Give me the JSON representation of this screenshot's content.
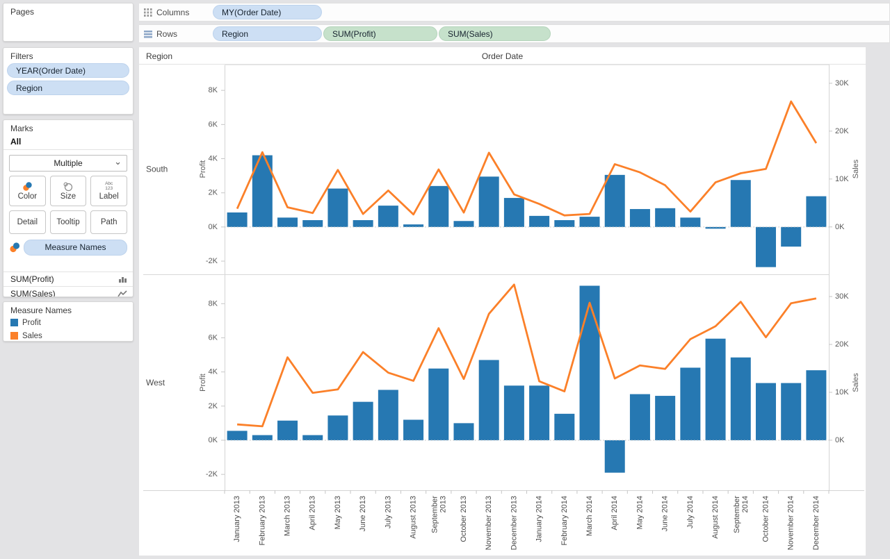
{
  "shelves": {
    "columns": {
      "label": "Columns",
      "pills": [
        {
          "text": "MY(Order Date)",
          "kind": "dimension"
        }
      ]
    },
    "rows": {
      "label": "Rows",
      "pills": [
        {
          "text": "Region",
          "kind": "dimension"
        },
        {
          "text": "SUM(Profit)",
          "kind": "measure"
        },
        {
          "text": "SUM(Sales)",
          "kind": "measure"
        }
      ]
    }
  },
  "sidebar": {
    "pages": {
      "title": "Pages"
    },
    "filters": {
      "title": "Filters",
      "pills": [
        "YEAR(Order Date)",
        "Region"
      ]
    },
    "marks": {
      "title": "Marks",
      "scope": "All",
      "mark_type": "Multiple",
      "buttons_row1": [
        "Color",
        "Size",
        "Label"
      ],
      "buttons_row2": [
        "Detail",
        "Tooltip",
        "Path"
      ],
      "label_icon_text": {
        "line1": "Abc",
        "line2": "123"
      },
      "encoding_pill": "Measure Names"
    },
    "measure_cards": [
      {
        "label": "SUM(Profit)",
        "icon": "bar-chart-icon"
      },
      {
        "label": "SUM(Sales)",
        "icon": "line-chart-icon"
      }
    ],
    "legend": {
      "title": "Measure Names",
      "items": [
        {
          "label": "Profit",
          "color": "#2678b2"
        },
        {
          "label": "Sales",
          "color": "#fb8029"
        }
      ]
    }
  },
  "chart_data": {
    "type": "bar+line dual-axis small multiples (2 region rows)",
    "column_header": "Order Date",
    "row_header": "Region",
    "categories": [
      "January 2013",
      "February 2013",
      "March 2013",
      "April 2013",
      "May 2013",
      "June 2013",
      "July 2013",
      "August 2013",
      "September 2013",
      "October 2013",
      "November 2013",
      "December 2013",
      "January 2014",
      "February 2014",
      "March 2014",
      "April 2014",
      "May 2014",
      "June 2014",
      "July 2014",
      "August 2014",
      "September 2014",
      "October 2014",
      "November 2014",
      "December 2014"
    ],
    "panels": [
      {
        "region": "South",
        "profit_k": [
          0.85,
          4.2,
          0.55,
          0.4,
          2.25,
          0.4,
          1.25,
          0.15,
          2.4,
          0.35,
          2.95,
          1.7,
          0.65,
          0.4,
          0.6,
          3.05,
          1.05,
          1.1,
          0.55,
          -0.1,
          2.75,
          -2.35,
          -1.15,
          1.8
        ],
        "sales_k": [
          3.8,
          15.6,
          4.1,
          2.9,
          11.9,
          2.7,
          7.6,
          2.6,
          12.0,
          3.0,
          15.5,
          6.8,
          4.8,
          2.4,
          2.7,
          13.1,
          11.4,
          8.7,
          3.2,
          9.3,
          11.2,
          12.1,
          26.2,
          17.5
        ],
        "profit_ylim_k": [
          -2.73,
          9.51
        ],
        "sales_ylim_k": [
          -9.75,
          33.9
        ]
      },
      {
        "region": "West",
        "profit_k": [
          0.55,
          0.3,
          1.15,
          0.3,
          1.45,
          2.25,
          2.95,
          1.2,
          4.2,
          1.0,
          4.7,
          3.2,
          3.2,
          1.55,
          9.05,
          -1.9,
          2.7,
          2.6,
          4.25,
          5.95,
          4.85,
          3.35,
          3.35,
          4.1
        ],
        "sales_k": [
          3.3,
          2.9,
          17.3,
          9.9,
          10.6,
          18.4,
          14.1,
          12.4,
          23.4,
          12.8,
          26.4,
          32.5,
          12.3,
          10.2,
          28.7,
          12.9,
          15.6,
          14.9,
          21.1,
          23.8,
          28.9,
          21.5,
          28.6,
          29.6
        ],
        "profit_ylim_k": [
          -2.93,
          9.68
        ],
        "sales_ylim_k": [
          -10.45,
          34.5
        ]
      }
    ],
    "profit_axis": {
      "label": "Profit",
      "tick_values_k": [
        8,
        6,
        4,
        2,
        0,
        -2
      ],
      "tick_labels": [
        "8K",
        "6K",
        "4K",
        "2K",
        "0K",
        "-2K"
      ]
    },
    "sales_axis": {
      "label": "Sales",
      "tick_values_k": [
        30,
        20,
        10,
        0
      ],
      "tick_labels": [
        "30K",
        "20K",
        "10K",
        "0K"
      ]
    },
    "series_colors": {
      "profit_bar": "#2678b2",
      "sales_line": "#fb8029"
    },
    "legend_position": "left sidebar",
    "grid": "zero-line dotted only"
  }
}
